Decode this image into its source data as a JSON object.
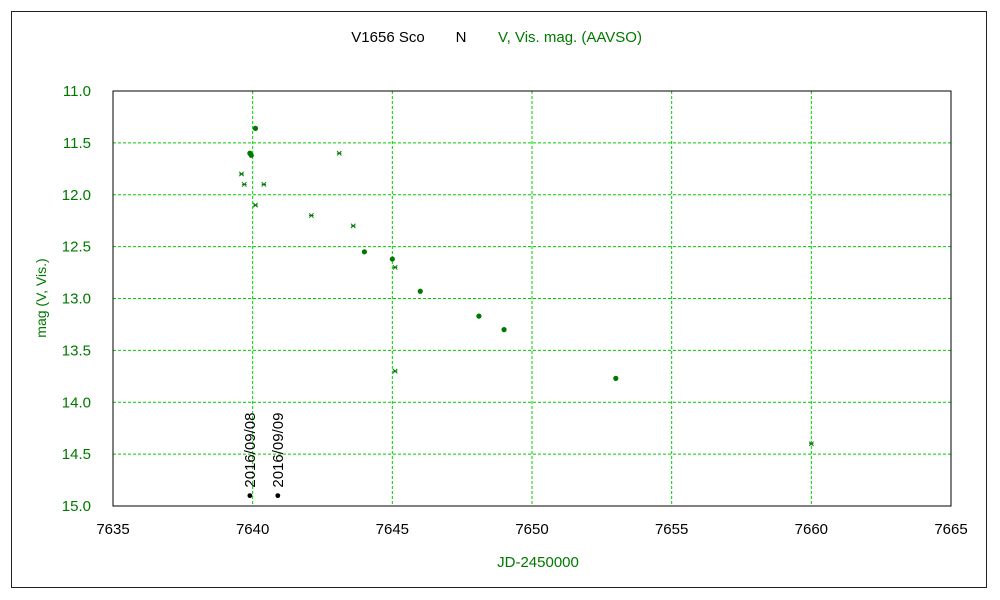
{
  "chart_data": {
    "type": "scatter",
    "title": "V1656 Sco",
    "subtitle_black": "N",
    "subtitle_green": "V, Vis. mag. (AAVSO)",
    "xlabel": "JD-2450000",
    "ylabel": "mag (V, Vis.)",
    "xlim": [
      7635,
      7665
    ],
    "ylim": [
      11.0,
      15.0
    ],
    "y_inverted": true,
    "grid": true,
    "x_ticks": [
      "7635",
      "7640",
      "7645",
      "7650",
      "7655",
      "7660",
      "7665"
    ],
    "y_ticks": [
      "11.0",
      "11.5",
      "12.0",
      "12.5",
      "13.0",
      "13.5",
      "14.0",
      "14.5",
      "15.0"
    ],
    "colors": {
      "data": "#007800",
      "grid": "#00cc00",
      "axis_text": "#007800",
      "marker_black": "#000000"
    },
    "series": [
      {
        "marker": "dot",
        "points": [
          {
            "x": 7639.9,
            "y": 11.6
          },
          {
            "x": 7639.95,
            "y": 11.62
          },
          {
            "x": 7640.1,
            "y": 11.36
          },
          {
            "x": 7644.0,
            "y": 12.55
          },
          {
            "x": 7645.0,
            "y": 12.62
          },
          {
            "x": 7646.0,
            "y": 12.93
          },
          {
            "x": 7648.1,
            "y": 13.17
          },
          {
            "x": 7649.0,
            "y": 13.3
          },
          {
            "x": 7653.0,
            "y": 13.77
          }
        ]
      },
      {
        "marker": "star",
        "points": [
          {
            "x": 7639.6,
            "y": 11.8
          },
          {
            "x": 7639.7,
            "y": 11.9
          },
          {
            "x": 7640.1,
            "y": 12.1
          },
          {
            "x": 7640.4,
            "y": 11.9
          },
          {
            "x": 7642.1,
            "y": 12.2
          },
          {
            "x": 7643.1,
            "y": 11.6
          },
          {
            "x": 7643.6,
            "y": 12.3
          },
          {
            "x": 7645.1,
            "y": 12.7
          },
          {
            "x": 7645.1,
            "y": 13.7
          },
          {
            "x": 7660.0,
            "y": 14.4
          }
        ]
      }
    ],
    "annotations": [
      {
        "label": "2016/09/08",
        "x": 7639.9,
        "y": 14.9
      },
      {
        "label": "2016/09/09",
        "x": 7640.9,
        "y": 14.9
      }
    ]
  }
}
